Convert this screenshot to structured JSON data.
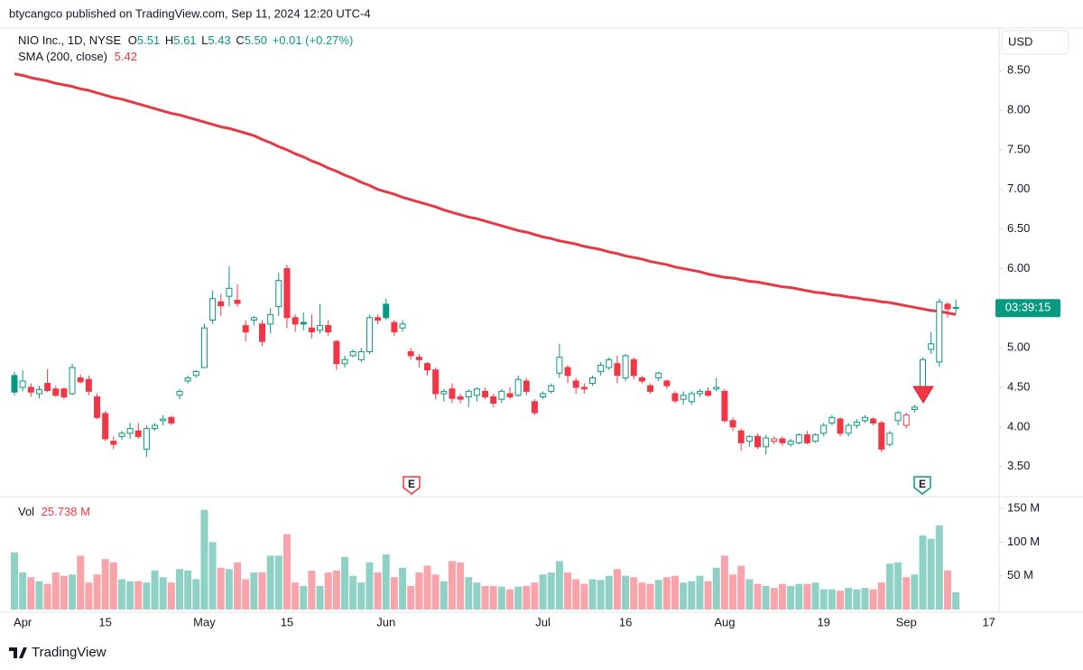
{
  "header": {
    "published": "btycangco published on TradingView.com, Sep 11, 2024 12:20 UTC-4",
    "brand": "TradingView"
  },
  "chart_data": {
    "type": "candlestick",
    "legend": {
      "symbol": "NIO Inc., 1D, NYSE",
      "open_label": "O",
      "open": "5.51",
      "high_label": "H",
      "high": "5.61",
      "low_label": "L",
      "low": "5.43",
      "close_label": "C",
      "close": "5.50",
      "change": "+0.01 (+0.27%)"
    },
    "currency": "USD",
    "countdown": "03:39:15",
    "up_color": "#089981",
    "down_color": "#f23645",
    "annotations": [
      "E",
      "E"
    ],
    "categories": [
      null,
      "Apr",
      null,
      null,
      null,
      null,
      null,
      null,
      null,
      null,
      null,
      "15",
      null,
      null,
      null,
      null,
      null,
      null,
      null,
      null,
      null,
      null,
      null,
      "May",
      null,
      null,
      null,
      null,
      null,
      null,
      null,
      null,
      null,
      "15",
      null,
      null,
      null,
      null,
      null,
      null,
      null,
      null,
      null,
      null,
      null,
      "Jun",
      null,
      null,
      null,
      null,
      null,
      null,
      null,
      null,
      null,
      null,
      null,
      null,
      null,
      null,
      null,
      null,
      null,
      null,
      "Jul",
      null,
      null,
      null,
      null,
      null,
      null,
      null,
      null,
      null,
      "16",
      null,
      null,
      null,
      null,
      null,
      null,
      null,
      null,
      null,
      null,
      null,
      "Aug",
      null,
      null,
      null,
      null,
      null,
      null,
      null,
      null,
      null,
      null,
      null,
      "19",
      null,
      null,
      null,
      null,
      null,
      null,
      null,
      null,
      null,
      "Sep",
      null,
      null,
      null,
      null,
      null,
      null,
      null,
      null,
      null,
      "17"
    ],
    "open": [
      4.65,
      4.5,
      4.5,
      4.42,
      4.55,
      4.48,
      4.48,
      4.42,
      4.62,
      4.6,
      4.38,
      4.17,
      3.82,
      3.88,
      3.92,
      3.95,
      3.72,
      3.98,
      4.08,
      4.12,
      4.4,
      4.58,
      4.65,
      4.75,
      5.35,
      5.58,
      5.65,
      5.6,
      5.28,
      5.35,
      5.3,
      5.3,
      5.52,
      6.0,
      5.38,
      5.32,
      5.25,
      5.22,
      5.28,
      5.08,
      4.8,
      4.9,
      4.85,
      4.95,
      5.38,
      5.55,
      5.32,
      5.25,
      4.95,
      4.88,
      4.8,
      4.72,
      4.42,
      4.48,
      4.38,
      4.38,
      4.4,
      4.45,
      4.38,
      4.35,
      4.42,
      4.4,
      4.58,
      4.32,
      4.38,
      4.45,
      4.68,
      4.75,
      4.58,
      4.5,
      4.55,
      4.7,
      4.75,
      4.8,
      4.62,
      4.85,
      4.62,
      4.52,
      4.62,
      4.58,
      4.42,
      4.35,
      4.32,
      4.42,
      4.45,
      4.48,
      4.45,
      4.08,
      3.95,
      3.82,
      3.88,
      3.75,
      3.82,
      3.85,
      3.78,
      3.8,
      3.9,
      3.82,
      3.92,
      4.05,
      4.1,
      3.92,
      4.02,
      4.08,
      4.1,
      4.05,
      3.78,
      4.08,
      4.02,
      4.22,
      4.42,
      4.98,
      4.82,
      5.55,
      5.51,
      null,
      null,
      null,
      null
    ],
    "high": [
      4.7,
      4.72,
      4.55,
      4.52,
      4.73,
      4.52,
      4.5,
      4.8,
      4.66,
      4.65,
      4.42,
      4.2,
      3.88,
      3.95,
      4.05,
      4.05,
      4.02,
      4.05,
      4.15,
      4.14,
      4.48,
      4.65,
      4.72,
      5.3,
      5.72,
      5.68,
      6.03,
      5.8,
      5.35,
      5.4,
      5.35,
      5.5,
      5.95,
      6.05,
      5.42,
      5.45,
      5.42,
      5.55,
      5.35,
      5.1,
      4.9,
      4.98,
      5.0,
      5.42,
      5.42,
      5.62,
      5.35,
      5.35,
      5.0,
      4.92,
      4.82,
      4.75,
      4.48,
      4.55,
      4.42,
      4.48,
      4.5,
      4.5,
      4.42,
      4.48,
      4.5,
      4.65,
      4.62,
      4.35,
      4.45,
      4.55,
      5.05,
      4.78,
      4.62,
      4.55,
      4.65,
      4.82,
      4.88,
      4.9,
      4.92,
      4.88,
      4.65,
      4.55,
      4.7,
      4.6,
      4.45,
      4.45,
      4.45,
      4.48,
      4.5,
      4.62,
      4.48,
      4.12,
      3.98,
      3.9,
      3.92,
      3.9,
      3.88,
      3.88,
      3.85,
      3.92,
      3.95,
      3.92,
      4.05,
      4.15,
      4.12,
      4.05,
      4.1,
      4.15,
      4.12,
      4.08,
      3.95,
      4.2,
      4.18,
      4.28,
      4.88,
      5.2,
      5.62,
      5.58,
      5.61,
      null,
      null,
      null,
      null
    ],
    "low": [
      4.4,
      4.45,
      4.38,
      4.36,
      4.44,
      4.38,
      4.35,
      4.4,
      4.55,
      4.4,
      4.1,
      3.82,
      3.72,
      3.84,
      3.85,
      3.85,
      3.62,
      3.95,
      4.02,
      4.02,
      4.35,
      4.55,
      4.62,
      4.75,
      5.3,
      5.4,
      5.52,
      5.52,
      5.08,
      5.28,
      5.02,
      5.18,
      5.4,
      5.25,
      5.2,
      5.22,
      5.12,
      5.18,
      5.15,
      4.72,
      4.75,
      4.88,
      4.82,
      4.92,
      5.3,
      5.35,
      5.15,
      5.2,
      4.85,
      4.75,
      4.65,
      4.35,
      4.32,
      4.3,
      4.3,
      4.25,
      4.32,
      4.35,
      4.25,
      4.3,
      4.35,
      4.38,
      4.4,
      4.15,
      4.35,
      4.42,
      4.62,
      4.55,
      4.42,
      4.42,
      4.52,
      4.65,
      4.72,
      4.55,
      4.58,
      4.6,
      4.55,
      4.42,
      4.58,
      4.48,
      4.3,
      4.28,
      4.28,
      4.38,
      4.38,
      4.45,
      4.05,
      3.95,
      3.7,
      3.75,
      3.72,
      3.65,
      3.78,
      3.76,
      3.75,
      3.78,
      3.78,
      3.8,
      3.88,
      4.02,
      3.88,
      3.88,
      3.98,
      4.05,
      4.02,
      3.68,
      3.75,
      4.02,
      3.98,
      4.18,
      4.4,
      4.92,
      4.76,
      5.38,
      5.43,
      null,
      null,
      null,
      null
    ],
    "close": [
      4.44,
      4.58,
      4.44,
      4.47,
      4.46,
      4.4,
      4.38,
      4.75,
      4.57,
      4.45,
      4.12,
      3.85,
      3.78,
      3.92,
      3.98,
      3.88,
      3.98,
      4.02,
      4.1,
      4.05,
      4.45,
      4.62,
      4.7,
      5.25,
      5.62,
      5.53,
      5.75,
      5.56,
      5.2,
      5.38,
      5.08,
      5.42,
      5.85,
      5.38,
      5.3,
      5.3,
      5.2,
      5.28,
      5.2,
      4.8,
      4.85,
      4.95,
      4.95,
      5.38,
      5.35,
      5.38,
      5.2,
      5.3,
      4.9,
      4.85,
      4.72,
      4.42,
      4.45,
      4.36,
      4.35,
      4.45,
      4.48,
      4.38,
      4.3,
      4.45,
      4.38,
      4.6,
      4.45,
      4.18,
      4.42,
      4.52,
      4.88,
      4.65,
      4.5,
      4.48,
      4.62,
      4.78,
      4.85,
      4.65,
      4.9,
      4.65,
      4.58,
      4.45,
      4.68,
      4.52,
      4.33,
      4.4,
      4.42,
      4.45,
      4.4,
      4.5,
      4.08,
      4.0,
      3.8,
      3.88,
      3.75,
      3.86,
      3.85,
      3.8,
      3.82,
      3.9,
      3.8,
      3.9,
      4.02,
      4.12,
      3.92,
      4.02,
      4.06,
      4.12,
      4.05,
      3.72,
      3.92,
      4.18,
      4.15,
      4.25,
      4.85,
      5.05,
      5.58,
      5.49,
      5.5,
      null,
      null,
      null,
      null
    ],
    "ylim": [
      3.12,
      9.05
    ],
    "yticks": [
      {
        "value": 3.5,
        "label": "3.50"
      },
      {
        "value": 4,
        "label": "4.00"
      },
      {
        "value": 4.5,
        "label": "4.50"
      },
      {
        "value": 5,
        "label": "5.00"
      },
      {
        "value": 5.5,
        "label": "5.50"
      },
      {
        "value": 6,
        "label": "6.00"
      },
      {
        "value": 6.5,
        "label": "6.50"
      },
      {
        "value": 7,
        "label": "7.00"
      },
      {
        "value": 7.5,
        "label": "7.50"
      },
      {
        "value": 8,
        "label": "8.00"
      },
      {
        "value": 8.5,
        "label": "8.50"
      }
    ],
    "sma": {
      "name": "SMA (200, close)",
      "value_label": "5.42",
      "color": "#e53945",
      "values": [
        8.46,
        8.44,
        8.41,
        8.39,
        8.37,
        8.34,
        8.32,
        8.3,
        8.27,
        8.25,
        8.22,
        8.19,
        8.16,
        8.14,
        8.11,
        8.08,
        8.05,
        8.02,
        7.99,
        7.96,
        7.94,
        7.91,
        7.88,
        7.85,
        7.82,
        7.79,
        7.77,
        7.74,
        7.71,
        7.68,
        7.63,
        7.59,
        7.54,
        7.5,
        7.45,
        7.41,
        7.36,
        7.32,
        7.27,
        7.23,
        7.18,
        7.14,
        7.09,
        7.05,
        7.0,
        6.97,
        6.94,
        6.9,
        6.87,
        6.84,
        6.81,
        6.78,
        6.74,
        6.71,
        6.68,
        6.65,
        6.63,
        6.6,
        6.57,
        6.54,
        6.51,
        6.48,
        6.46,
        6.43,
        6.4,
        6.38,
        6.35,
        6.33,
        6.31,
        6.28,
        6.26,
        6.24,
        6.21,
        6.19,
        6.16,
        6.14,
        6.12,
        6.09,
        6.07,
        6.05,
        6.02,
        6.0,
        5.98,
        5.96,
        5.93,
        5.91,
        5.89,
        5.88,
        5.86,
        5.84,
        5.83,
        5.81,
        5.79,
        5.77,
        5.76,
        5.74,
        5.72,
        5.7,
        5.69,
        5.67,
        5.66,
        5.64,
        5.63,
        5.61,
        5.6,
        5.58,
        5.57,
        5.55,
        5.53,
        5.51,
        5.49,
        5.47,
        5.46,
        5.44,
        5.42,
        null,
        null,
        null,
        null
      ]
    },
    "volume": {
      "name": "Vol",
      "value_label": "25.738 M",
      "ylim": [
        0,
        165
      ],
      "yticks": [
        {
          "value": 50,
          "label": "50 M"
        },
        {
          "value": 100,
          "label": "100 M"
        },
        {
          "value": 150,
          "label": "150 M"
        }
      ],
      "values": [
        85,
        55,
        48,
        42,
        38,
        55,
        50,
        52,
        80,
        40,
        52,
        75,
        70,
        45,
        42,
        42,
        40,
        58,
        48,
        40,
        60,
        58,
        45,
        148,
        100,
        62,
        60,
        70,
        45,
        55,
        55,
        80,
        80,
        112,
        40,
        35,
        58,
        35,
        55,
        58,
        78,
        50,
        40,
        70,
        55,
        82,
        48,
        62,
        35,
        55,
        65,
        52,
        42,
        72,
        70,
        48,
        40,
        35,
        35,
        34,
        30,
        34,
        35,
        40,
        52,
        55,
        72,
        55,
        45,
        38,
        45,
        44,
        50,
        60,
        50,
        48,
        40,
        38,
        44,
        48,
        50,
        40,
        42,
        50,
        42,
        62,
        80,
        52,
        65,
        45,
        38,
        35,
        32,
        38,
        35,
        38,
        38,
        40,
        30,
        30,
        28,
        32,
        30,
        32,
        30,
        40,
        68,
        70,
        48,
        52,
        110,
        105,
        125,
        58,
        25.738,
        null,
        null,
        null,
        null
      ]
    }
  }
}
